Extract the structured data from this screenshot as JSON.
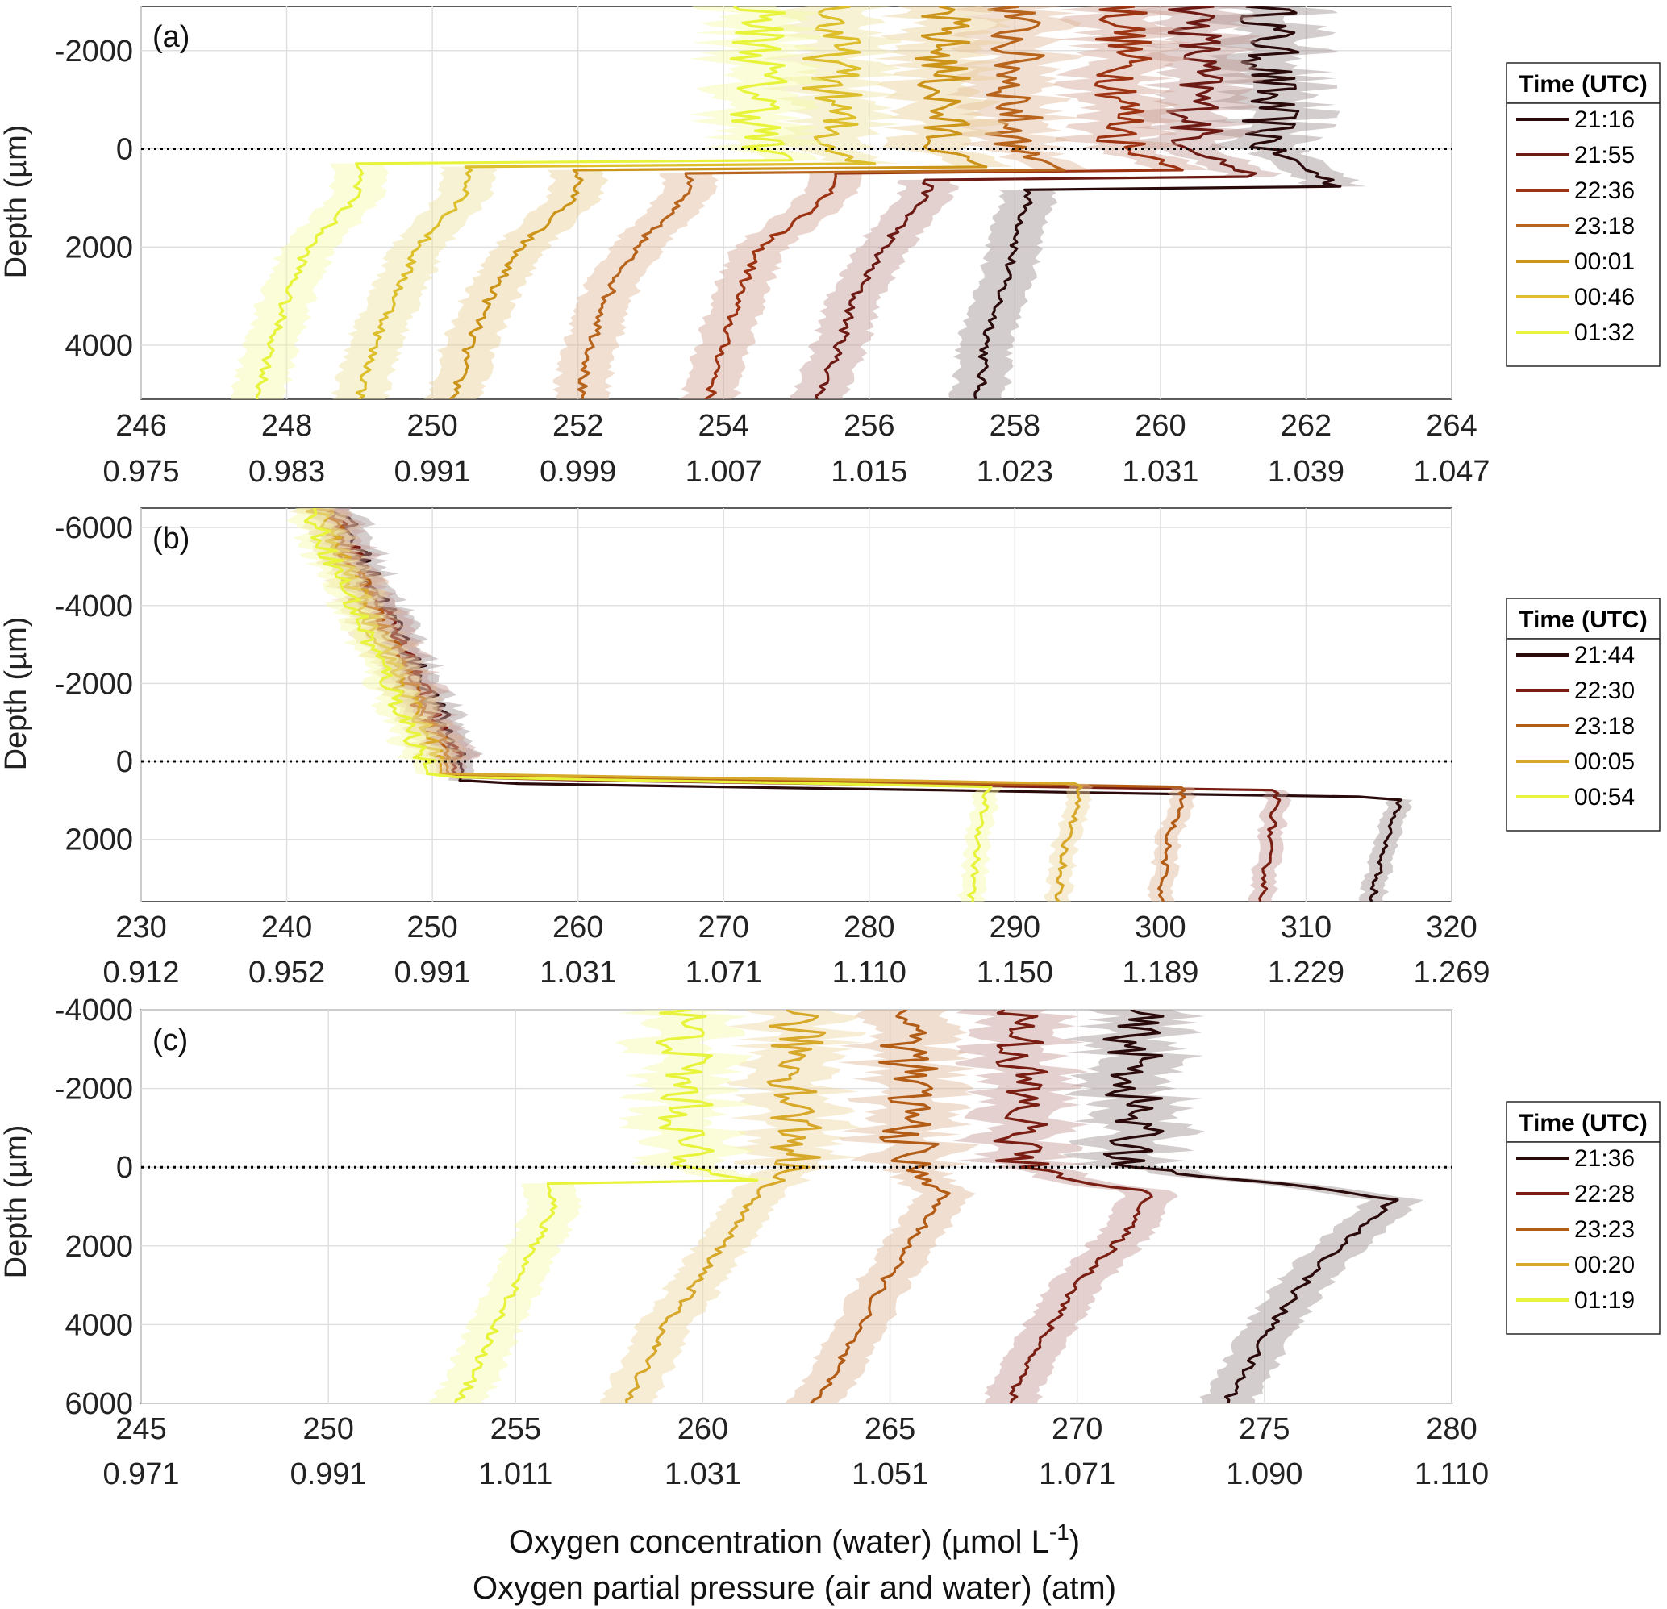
{
  "xlabel_line1_prefix": "Oxygen concentration (water) (µmol L",
  "xlabel_line1_sup": "-1",
  "xlabel_line1_suffix": ")",
  "xlabel_line2": "Oxygen partial pressure (air and water) (atm)",
  "ylabel": "Depth (µm)",
  "legend_title": "Time (UTC)",
  "chart_data": [
    {
      "type": "line",
      "panel": "(a)",
      "xlim": [
        246,
        264
      ],
      "ylim": [
        -2900,
        5100
      ],
      "x_ticks": [
        "246",
        "248",
        "250",
        "252",
        "254",
        "256",
        "258",
        "260",
        "262",
        "264"
      ],
      "x2_ticks": [
        "0.975",
        "0.983",
        "0.991",
        "0.999",
        "1.007",
        "1.015",
        "1.023",
        "1.031",
        "1.039",
        "1.047"
      ],
      "y_ticks": [
        "-2000",
        "0",
        "2000",
        "4000"
      ],
      "y_tick_values": [
        -2000,
        0,
        2000,
        4000
      ],
      "reference_line_depth": 0,
      "series": [
        {
          "name": "21:16",
          "color": "#2a0a0a",
          "air": 261.5,
          "peak_depth": 800,
          "peak": 262.5,
          "profile": [
            [
              900,
              258.2
            ],
            [
              2000,
              258.0
            ],
            [
              3000,
              257.8
            ],
            [
              4000,
              257.6
            ],
            [
              5100,
              257.5
            ]
          ]
        },
        {
          "name": "21:55",
          "color": "#6e1a14",
          "air": 260.5,
          "peak_depth": 600,
          "peak": 261.3,
          "profile": [
            [
              900,
              256.8
            ],
            [
              2000,
              256.2
            ],
            [
              3000,
              255.8
            ],
            [
              4000,
              255.6
            ],
            [
              5100,
              255.3
            ]
          ]
        },
        {
          "name": "22:36",
          "color": "#9c3312",
          "air": 259.5,
          "peak_depth": 500,
          "peak": 260.6,
          "profile": [
            [
              900,
              255.5
            ],
            [
              2000,
              254.5
            ],
            [
              3000,
              254.2
            ],
            [
              4000,
              254.0
            ],
            [
              5100,
              253.8
            ]
          ]
        },
        {
          "name": "23:18",
          "color": "#b8641c",
          "air": 258.0,
          "peak_depth": 450,
          "peak": 258.8,
          "profile": [
            [
              900,
              253.5
            ],
            [
              2000,
              252.8
            ],
            [
              3000,
              252.4
            ],
            [
              4000,
              252.2
            ],
            [
              5100,
              252.0
            ]
          ]
        },
        {
          "name": "00:01",
          "color": "#cc9418",
          "air": 257.0,
          "peak_depth": 400,
          "peak": 257.5,
          "profile": [
            [
              900,
              252.0
            ],
            [
              2000,
              251.2
            ],
            [
              3000,
              250.8
            ],
            [
              4000,
              250.5
            ],
            [
              5100,
              250.3
            ]
          ]
        },
        {
          "name": "00:46",
          "color": "#dcbf2a",
          "air": 255.5,
          "peak_depth": 350,
          "peak": 256.0,
          "profile": [
            [
              900,
              250.5
            ],
            [
              2000,
              249.8
            ],
            [
              3000,
              249.5
            ],
            [
              4000,
              249.2
            ],
            [
              5100,
              249.0
            ]
          ]
        },
        {
          "name": "01:32",
          "color": "#e8f43c",
          "air": 254.5,
          "peak_depth": 300,
          "peak": 255.0,
          "profile": [
            [
              900,
              249.0
            ],
            [
              2000,
              248.3
            ],
            [
              3000,
              248.0
            ],
            [
              4000,
              247.8
            ],
            [
              5100,
              247.6
            ]
          ]
        }
      ]
    },
    {
      "type": "line",
      "panel": "(b)",
      "xlim": [
        230,
        320
      ],
      "ylim": [
        -6500,
        3600
      ],
      "x_ticks": [
        "230",
        "240",
        "250",
        "260",
        "270",
        "280",
        "290",
        "300",
        "310",
        "320"
      ],
      "x2_ticks": [
        "0.912",
        "0.952",
        "0.991",
        "1.031",
        "1.071",
        "1.110",
        "1.150",
        "1.189",
        "1.229",
        "1.269"
      ],
      "y_ticks": [
        "-6000",
        "-4000",
        "-2000",
        "0",
        "2000"
      ],
      "y_tick_values": [
        -6000,
        -4000,
        -2000,
        0,
        2000
      ],
      "reference_line_depth": 0,
      "series": [
        {
          "name": "21:44",
          "color": "#2a0a0a",
          "air_top": 243.5,
          "air_bottom": 252.0,
          "peak_depth": 1000,
          "peak": 316.5,
          "profile": [
            [
              1000,
              316.5
            ],
            [
              2000,
              315.5
            ],
            [
              3600,
              314.5
            ]
          ]
        },
        {
          "name": "22:30",
          "color": "#7a1e14",
          "air_top": 243.0,
          "air_bottom": 251.5,
          "peak_depth": 800,
          "peak": 308.0,
          "profile": [
            [
              1000,
              308.0
            ],
            [
              2000,
              307.5
            ],
            [
              3600,
              307.0
            ]
          ]
        },
        {
          "name": "23:18",
          "color": "#b35c16",
          "air_top": 242.5,
          "air_bottom": 251.0,
          "peak_depth": 700,
          "peak": 301.5,
          "profile": [
            [
              1000,
              301.5
            ],
            [
              2000,
              300.5
            ],
            [
              3600,
              300.0
            ]
          ]
        },
        {
          "name": "00:05",
          "color": "#d7a82a",
          "air_top": 242.0,
          "air_bottom": 250.5,
          "peak_depth": 600,
          "peak": 294.5,
          "profile": [
            [
              1000,
              294.5
            ],
            [
              2000,
              293.5
            ],
            [
              3600,
              293.0
            ]
          ]
        },
        {
          "name": "00:54",
          "color": "#e8f43c",
          "air_top": 241.5,
          "air_bottom": 249.5,
          "peak_depth": 700,
          "peak": 288.0,
          "profile": [
            [
              1000,
              288.0
            ],
            [
              2000,
              287.5
            ],
            [
              3600,
              287.0
            ]
          ]
        }
      ]
    },
    {
      "type": "line",
      "panel": "(c)",
      "xlim": [
        245,
        280
      ],
      "ylim": [
        -4000,
        6000
      ],
      "x_ticks": [
        "245",
        "250",
        "255",
        "260",
        "265",
        "270",
        "275",
        "280"
      ],
      "x2_ticks": [
        "0.971",
        "0.991",
        "1.011",
        "1.031",
        "1.051",
        "1.071",
        "1.090",
        "1.110"
      ],
      "y_ticks": [
        "-4000",
        "-2000",
        "0",
        "2000",
        "4000",
        "6000"
      ],
      "y_tick_values": [
        -4000,
        -2000,
        0,
        2000,
        4000,
        6000
      ],
      "reference_line_depth": 0,
      "series": [
        {
          "name": "21:36",
          "color": "#2a0a0a",
          "air": 271.5,
          "peak_depth": 800,
          "peak": 278.5,
          "profile": [
            [
              800,
              278.5
            ],
            [
              2000,
              277.0
            ],
            [
              3000,
              276.0
            ],
            [
              4000,
              275.2
            ],
            [
              5000,
              274.6
            ],
            [
              6000,
              274.0
            ]
          ]
        },
        {
          "name": "22:28",
          "color": "#7a1e14",
          "air": 268.5,
          "peak_depth": 700,
          "peak": 272.0,
          "profile": [
            [
              700,
              272.0
            ],
            [
              2000,
              271.0
            ],
            [
              3000,
              270.0
            ],
            [
              4000,
              269.3
            ],
            [
              5000,
              268.7
            ],
            [
              6000,
              268.2
            ]
          ]
        },
        {
          "name": "23:23",
          "color": "#b35c16",
          "air": 265.5,
          "peak_depth": 600,
          "peak": 266.5,
          "profile": [
            [
              600,
              266.5
            ],
            [
              2000,
              265.5
            ],
            [
              3000,
              264.8
            ],
            [
              4000,
              264.2
            ],
            [
              5000,
              263.6
            ],
            [
              6000,
              263.0
            ]
          ]
        },
        {
          "name": "00:20",
          "color": "#d7a82a",
          "air": 262.5,
          "peak_depth": 500,
          "peak": 262.0,
          "profile": [
            [
              600,
              261.5
            ],
            [
              2000,
              260.5
            ],
            [
              3000,
              259.8
            ],
            [
              4000,
              259.0
            ],
            [
              5000,
              258.5
            ],
            [
              6000,
              258.0
            ]
          ]
        },
        {
          "name": "01:19",
          "color": "#e8f43c",
          "air": 259.5,
          "peak_depth": 400,
          "peak": 262.0,
          "profile": [
            [
              1000,
              256.0
            ],
            [
              2000,
              255.5
            ],
            [
              3000,
              255.0
            ],
            [
              4000,
              254.5
            ],
            [
              5000,
              254.0
            ],
            [
              6000,
              253.5
            ]
          ]
        }
      ]
    }
  ]
}
